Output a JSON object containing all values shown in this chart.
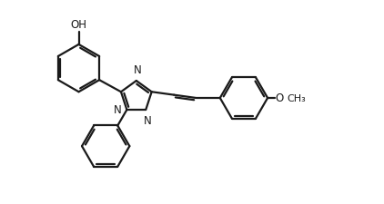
{
  "bg_color": "#ffffff",
  "line_color": "#1a1a1a",
  "line_width": 1.6,
  "font_size": 8.5,
  "figsize": [
    4.22,
    2.26
  ],
  "dpi": 100,
  "xlim": [
    0,
    10
  ],
  "ylim": [
    0,
    5.35
  ]
}
